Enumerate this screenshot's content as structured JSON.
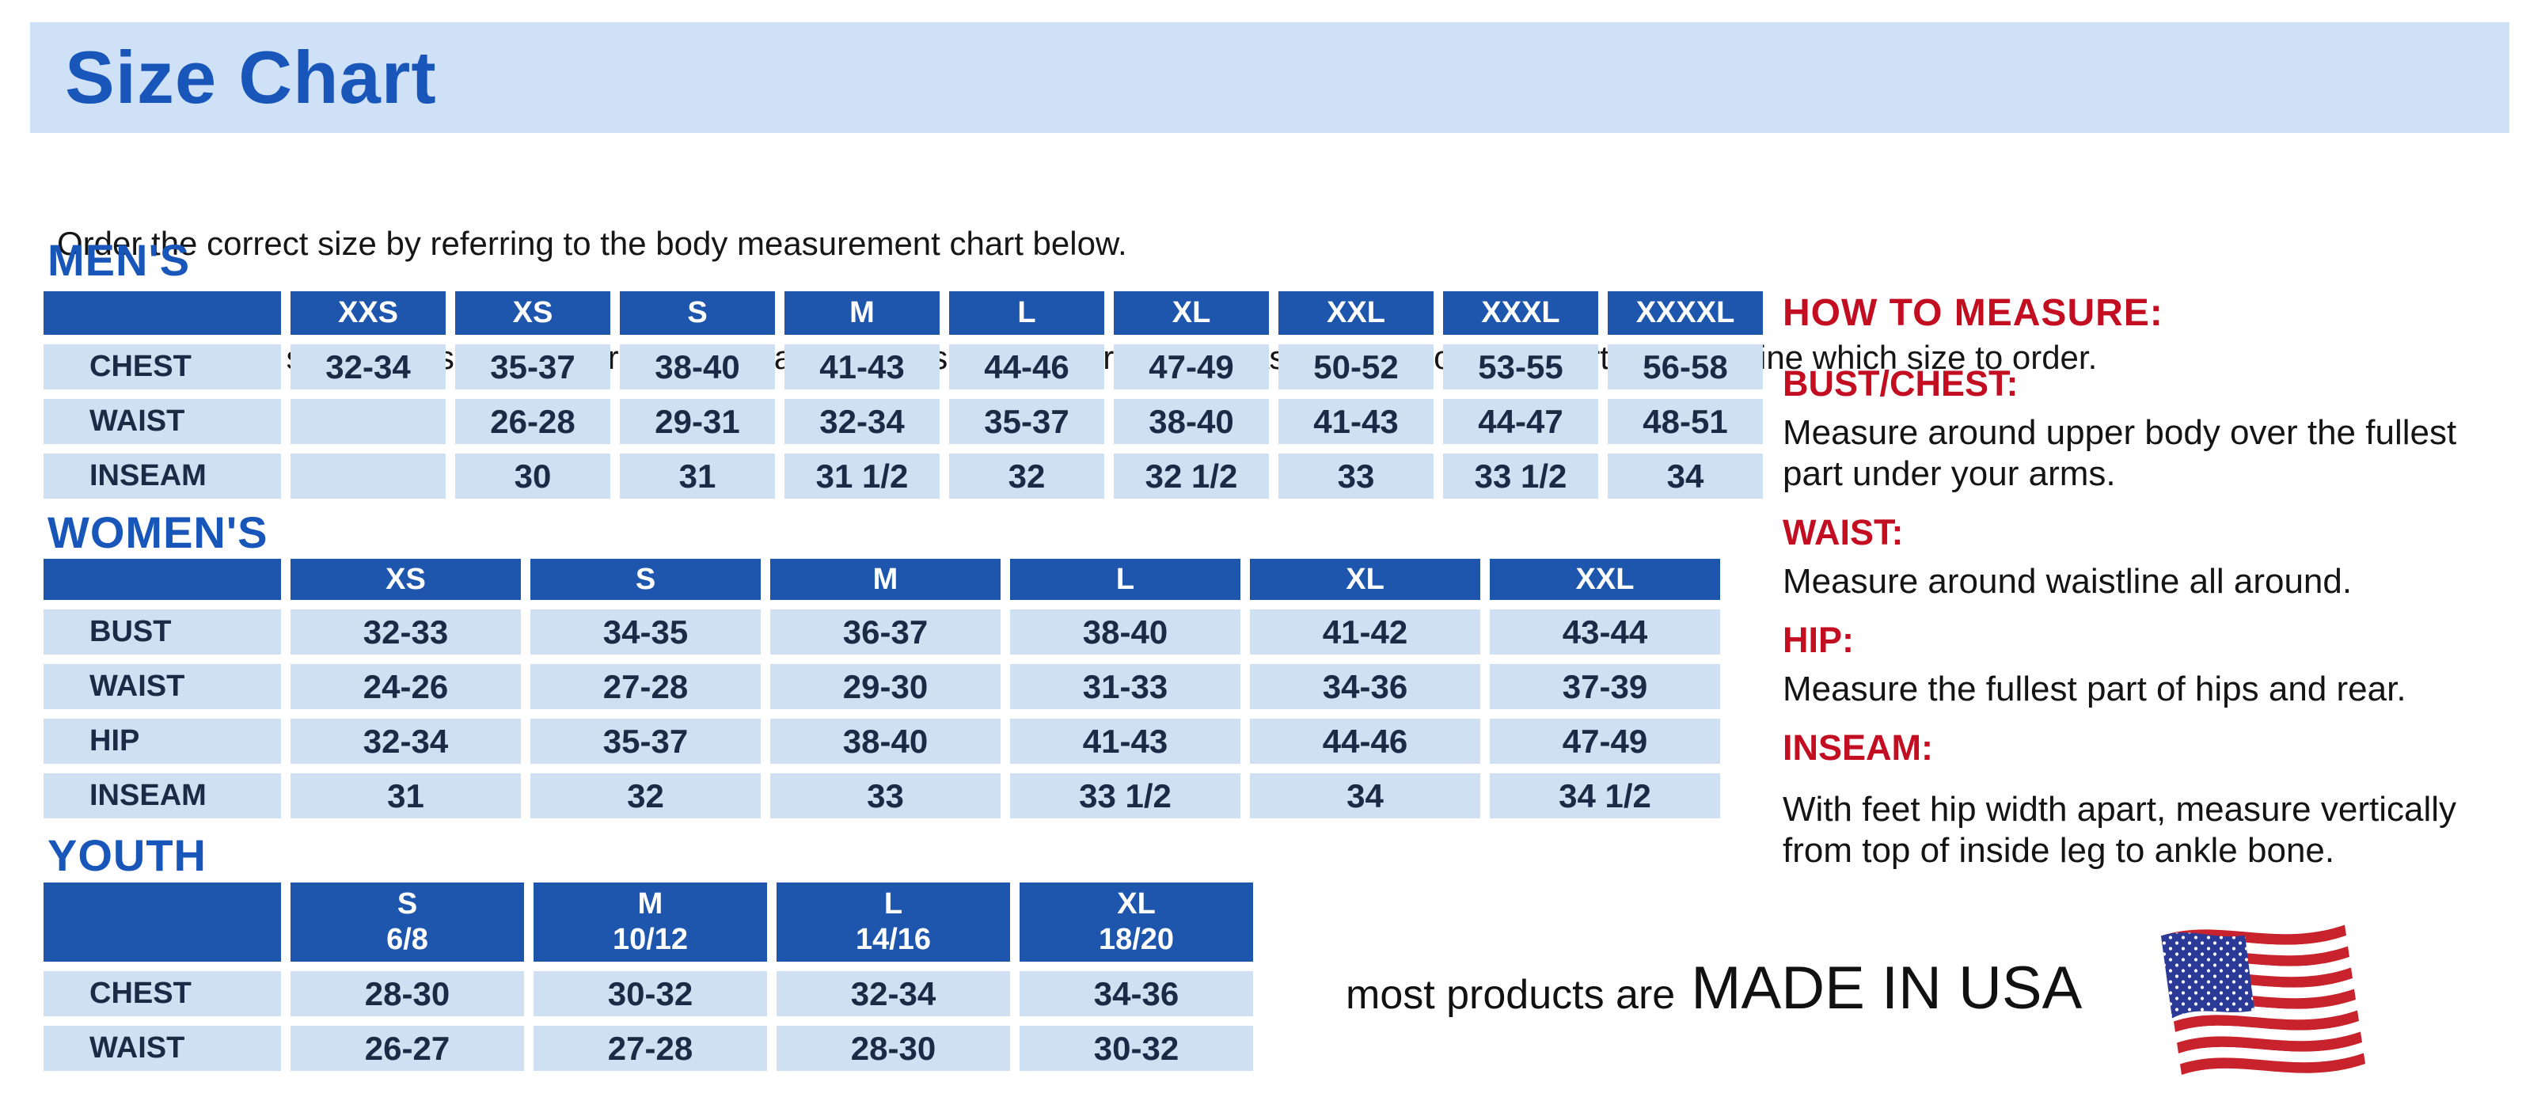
{
  "page": {
    "title": "Size Chart",
    "intro_line1": "Order the correct size by referring to the body measurement chart below.",
    "intro_line2": "Measurements shown on size chart are body measurements.  Find your body measurements on the chart to determine which size to order."
  },
  "colors": {
    "banner_bg": "#cfe1f6",
    "heading_blue": "#1956ba",
    "table_header_bg": "#1e56ae",
    "table_cell_bg": "#cfe0f2",
    "table_text": "#1c2a45",
    "accent_red": "#c30e22",
    "flag_red": "#c8232c",
    "flag_blue": "#2b3a97"
  },
  "tables": {
    "mens": {
      "heading": "MEN'S",
      "headers": [
        "",
        "XXS",
        "XS",
        "S",
        "M",
        "L",
        "XL",
        "XXL",
        "XXXL",
        "XXXXL"
      ],
      "rows": [
        {
          "label": "CHEST",
          "values": [
            "32-34",
            "35-37",
            "38-40",
            "41-43",
            "44-46",
            "47-49",
            "50-52",
            "53-55",
            "56-58"
          ]
        },
        {
          "label": "WAIST",
          "values": [
            "",
            "26-28",
            "29-31",
            "32-34",
            "35-37",
            "38-40",
            "41-43",
            "44-47",
            "48-51"
          ]
        },
        {
          "label": "INSEAM",
          "values": [
            "",
            "30",
            "31",
            "31 1/2",
            "32",
            "32 1/2",
            "33",
            "33 1/2",
            "34"
          ]
        }
      ]
    },
    "womens": {
      "heading": "WOMEN'S",
      "headers": [
        "",
        "XS",
        "S",
        "M",
        "L",
        "XL",
        "XXL"
      ],
      "rows": [
        {
          "label": "BUST",
          "values": [
            "32-33",
            "34-35",
            "36-37",
            "38-40",
            "41-42",
            "43-44"
          ]
        },
        {
          "label": "WAIST",
          "values": [
            "24-26",
            "27-28",
            "29-30",
            "31-33",
            "34-36",
            "37-39"
          ]
        },
        {
          "label": "HIP",
          "values": [
            "32-34",
            "35-37",
            "38-40",
            "41-43",
            "44-46",
            "47-49"
          ]
        },
        {
          "label": "INSEAM",
          "values": [
            "31",
            "32",
            "33",
            "33 1/2",
            "34",
            "34 1/2"
          ]
        }
      ]
    },
    "youth": {
      "heading": "YOUTH",
      "headers": [
        "",
        "S\n6/8",
        "M\n10/12",
        "L\n14/16",
        "XL\n18/20"
      ],
      "rows": [
        {
          "label": "CHEST",
          "values": [
            "28-30",
            "30-32",
            "32-34",
            "34-36"
          ]
        },
        {
          "label": "WAIST",
          "values": [
            "26-27",
            "27-28",
            "28-30",
            "30-32"
          ]
        }
      ]
    }
  },
  "measure": {
    "title": "HOW TO MEASURE:",
    "sections": [
      {
        "heading": "BUST/CHEST:",
        "text": "Measure around upper body over the fullest part under your arms."
      },
      {
        "heading": "WAIST:",
        "text": "Measure around waistline all around."
      },
      {
        "heading": "HIP:",
        "text": "Measure the fullest part of hips and rear."
      },
      {
        "heading": "INSEAM:",
        "text": "With feet hip width apart, measure vertically from top of inside leg to ankle bone."
      }
    ]
  },
  "footer": {
    "prefix": "most products are",
    "emphasis": "MADE IN USA",
    "flag_icon": "usa-flag-icon"
  }
}
